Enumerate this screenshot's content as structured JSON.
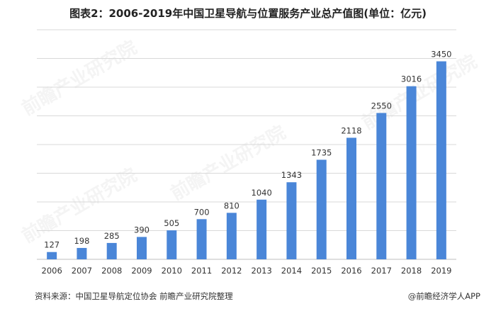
{
  "title": "图表2：2006-2019年中国卫星导航与位置服务产业总产值图(单位：亿元)",
  "source": "资料来源：中国卫星导航定位协会 前瞻产业研究院整理",
  "credit": "@前瞻经济学人APP",
  "watermark": "前瞻产业研究院",
  "colors": {
    "bar": "#4a86d8",
    "grid": "#d9d9d9",
    "axis": "#bfbfbf",
    "text": "#333333"
  },
  "chart_data": {
    "type": "bar",
    "categories": [
      "2006",
      "2007",
      "2008",
      "2009",
      "2010",
      "2011",
      "2012",
      "2013",
      "2014",
      "2015",
      "2016",
      "2017",
      "2018",
      "2019"
    ],
    "values": [
      127,
      198,
      285,
      390,
      505,
      700,
      810,
      1040,
      1343,
      1735,
      2118,
      2550,
      3016,
      3450
    ],
    "ylim": [
      0,
      4000
    ],
    "grid": true,
    "legend": "none"
  }
}
